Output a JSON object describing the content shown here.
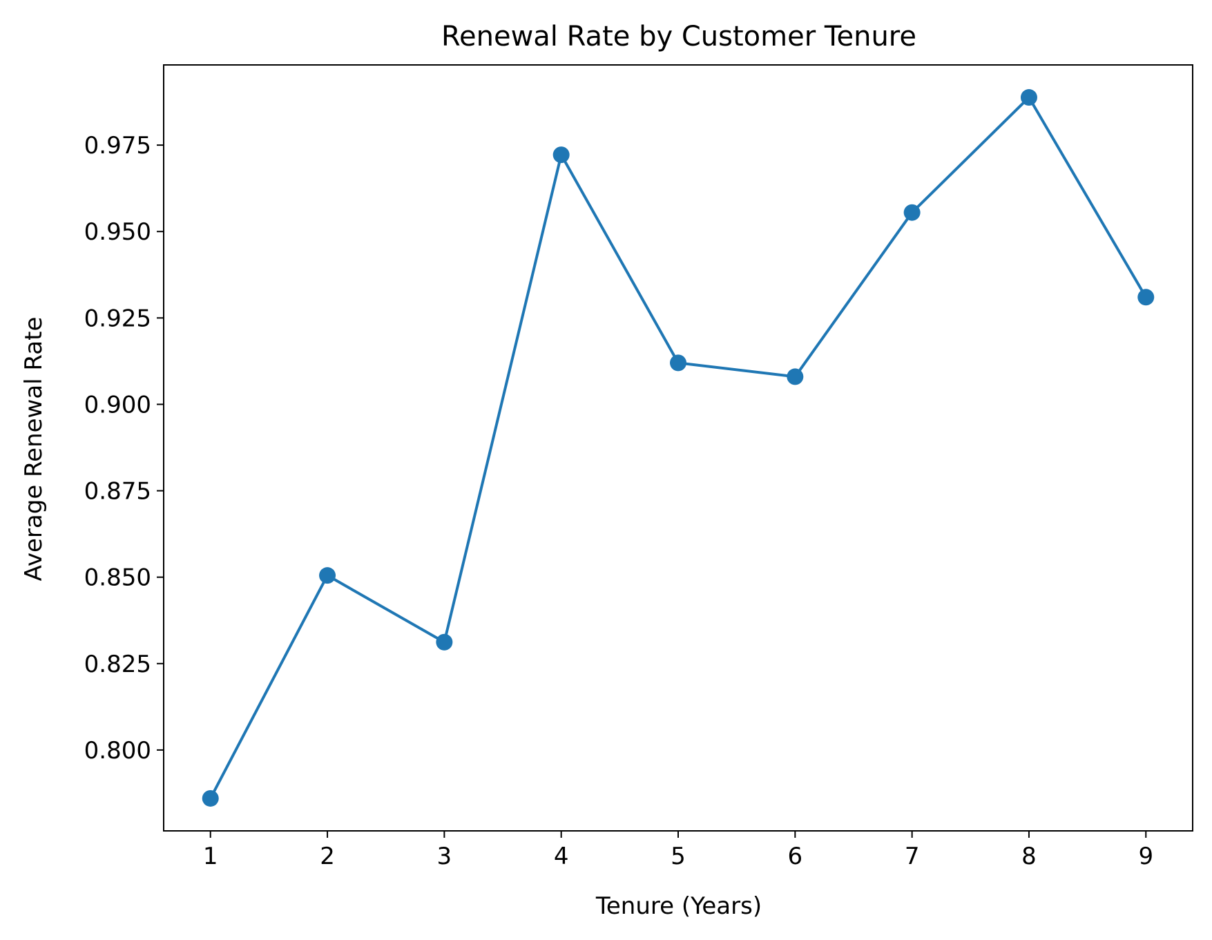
{
  "chart_data": {
    "type": "line",
    "title": "Renewal Rate by Customer Tenure",
    "xlabel": "Tenure (Years)",
    "ylabel": "Average Renewal Rate",
    "x": [
      1,
      2,
      3,
      4,
      5,
      6,
      7,
      8,
      9
    ],
    "series": [
      {
        "values": [
          0.786,
          0.8505,
          0.8312,
          0.9722,
          0.912,
          0.908,
          0.9555,
          0.9888,
          0.931
        ]
      }
    ],
    "xlim": [
      0.6,
      9.4
    ],
    "ylim": [
      0.7766,
      0.9982
    ],
    "xticks": [
      1,
      2,
      3,
      4,
      5,
      6,
      7,
      8,
      9
    ],
    "xtick_labels": [
      "1",
      "2",
      "3",
      "4",
      "5",
      "6",
      "7",
      "8",
      "9"
    ],
    "yticks": [
      0.8,
      0.825,
      0.85,
      0.875,
      0.9,
      0.925,
      0.95,
      0.975
    ],
    "ytick_labels": [
      "0.800",
      "0.825",
      "0.850",
      "0.875",
      "0.900",
      "0.925",
      "0.950",
      "0.975"
    ],
    "grid": false,
    "legend": "none",
    "colors": {
      "line": "#1f77b4",
      "marker": "#1f77b4",
      "axis": "#000000",
      "background": "#ffffff"
    }
  }
}
